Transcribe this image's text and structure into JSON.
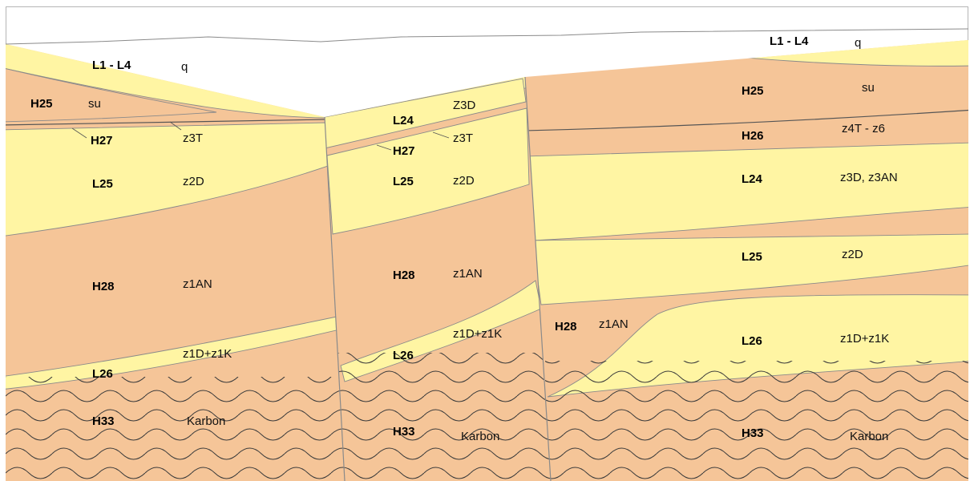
{
  "colors": {
    "salt": "#f5c598",
    "clay": "#fff5a3",
    "outline": "#8a8a8a"
  },
  "labels": {
    "left": {
      "l1": {
        "unit": "L1 - L4",
        "strat": "q"
      },
      "h25": {
        "unit": "H25",
        "strat": "su"
      },
      "h27": {
        "unit": "H27",
        "strat": "z3T"
      },
      "l25": {
        "unit": "L25",
        "strat": "z2D"
      },
      "h28": {
        "unit": "H28",
        "strat": "z1AN"
      },
      "l26": {
        "unit": "L26",
        "strat": "z1D+z1K"
      },
      "h33": {
        "unit": "H33",
        "strat": "Karbon"
      }
    },
    "middle": {
      "l24": {
        "unit": "L24",
        "strat": "Z3D"
      },
      "h27": {
        "unit": "H27",
        "strat": "z3T"
      },
      "l25": {
        "unit": "L25",
        "strat": "z2D"
      },
      "h28": {
        "unit": "H28",
        "strat": "z1AN"
      },
      "l26": {
        "unit": "L26",
        "strat": "z1D+z1K"
      },
      "h33": {
        "unit": "H33",
        "strat": "Karbon"
      }
    },
    "right": {
      "l1": {
        "unit": "L1 - L4",
        "strat": "q"
      },
      "h25": {
        "unit": "H25",
        "strat": "su"
      },
      "h26": {
        "unit": "H26",
        "strat": "z4T - z6"
      },
      "l24": {
        "unit": "L24",
        "strat": "z3D, z3AN"
      },
      "l25": {
        "unit": "L25",
        "strat": "z2D"
      },
      "h28": {
        "unit": "H28",
        "strat": "z1AN"
      },
      "l26": {
        "unit": "L26",
        "strat": "z1D+z1K"
      },
      "h33": {
        "unit": "H33",
        "strat": "Karbon"
      }
    }
  }
}
